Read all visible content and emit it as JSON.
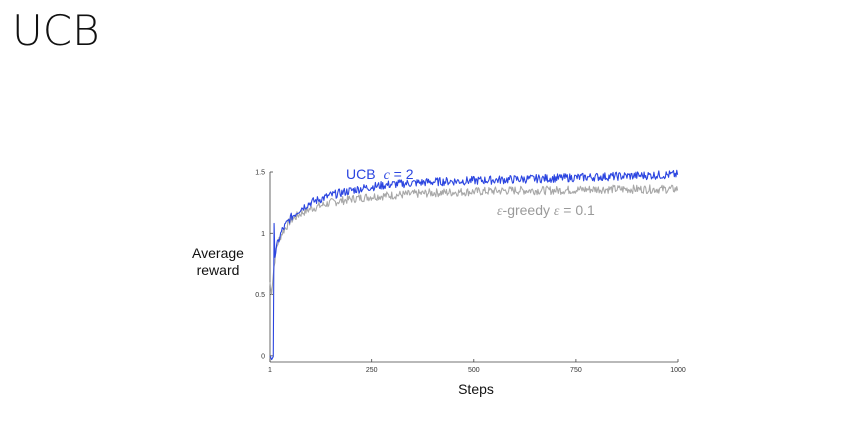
{
  "slide": {
    "title": "UCB"
  },
  "chart_data": {
    "type": "line",
    "xlabel": "Steps",
    "ylabel_lines": [
      "Average",
      "reward"
    ],
    "xlim": [
      1,
      1000
    ],
    "ylim": [
      -0.05,
      1.5
    ],
    "x_ticks": [
      {
        "value": 1,
        "label": "1"
      },
      {
        "value": 250,
        "label": "250"
      },
      {
        "value": 500,
        "label": "500"
      },
      {
        "value": 750,
        "label": "750"
      },
      {
        "value": 1000,
        "label": "1000"
      }
    ],
    "y_ticks": [
      {
        "value": 0,
        "label": "0"
      },
      {
        "value": 0.5,
        "label": "0.5"
      },
      {
        "value": 1,
        "label": "1"
      },
      {
        "value": 1.5,
        "label": "1.5"
      }
    ],
    "grid": false,
    "legend": "inline labels",
    "series": [
      {
        "name_parts": [
          "UCB",
          "c",
          " = 2"
        ],
        "color": "#2b45e0",
        "x": [
          1,
          5,
          10,
          11,
          12,
          15,
          20,
          30,
          50,
          75,
          100,
          150,
          200,
          250,
          300,
          350,
          400,
          500,
          600,
          700,
          800,
          900,
          1000
        ],
        "y": [
          0.0,
          -0.03,
          0.0,
          1.08,
          0.8,
          0.85,
          0.92,
          1.02,
          1.12,
          1.2,
          1.25,
          1.31,
          1.35,
          1.38,
          1.4,
          1.41,
          1.42,
          1.43,
          1.44,
          1.45,
          1.46,
          1.47,
          1.48
        ]
      },
      {
        "name_parts": [
          "ε",
          "-greedy  ",
          "ε",
          " = 0.1"
        ],
        "color": "#a8a8a8",
        "x": [
          1,
          5,
          10,
          15,
          20,
          30,
          50,
          75,
          100,
          150,
          200,
          250,
          300,
          350,
          400,
          500,
          600,
          700,
          800,
          900,
          1000
        ],
        "y": [
          0.6,
          0.5,
          0.7,
          0.85,
          0.92,
          1.0,
          1.1,
          1.16,
          1.2,
          1.25,
          1.28,
          1.3,
          1.31,
          1.32,
          1.33,
          1.34,
          1.35,
          1.35,
          1.36,
          1.36,
          1.36
        ]
      }
    ]
  },
  "colors": {
    "axis": "#444444",
    "ucb": "#2b45e0",
    "greedy": "#a8a8a8"
  }
}
